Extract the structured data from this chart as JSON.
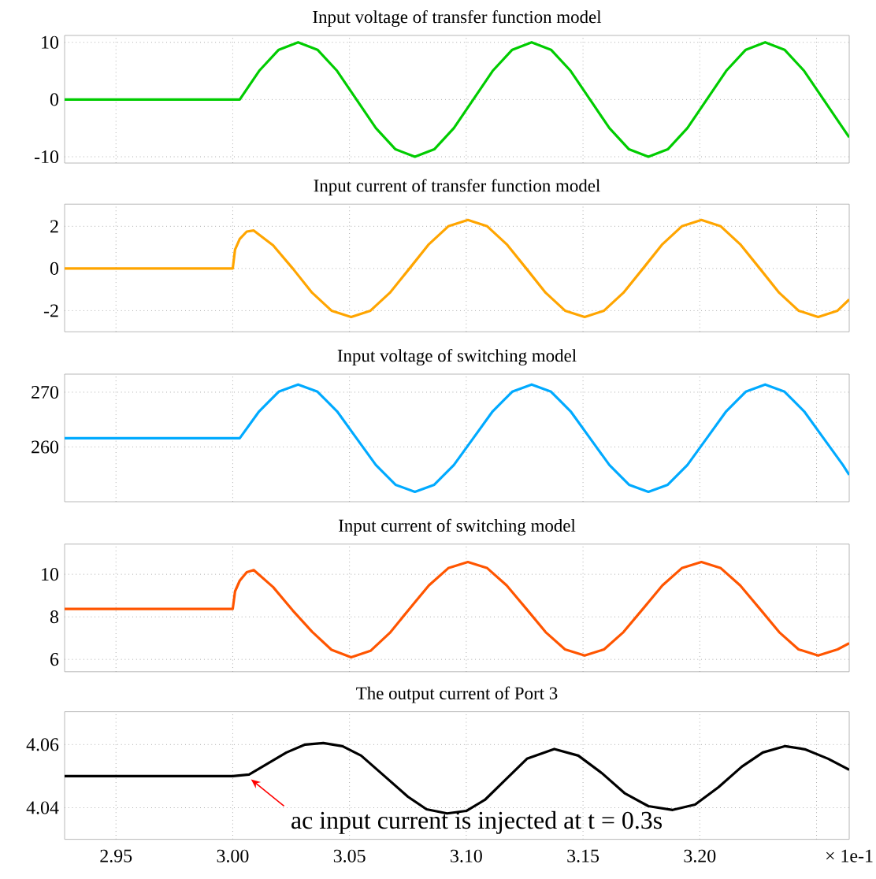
{
  "chart_data": [
    {
      "type": "line",
      "title": "Input voltage of transfer function model",
      "color": "#00cc00",
      "line_style": "solid",
      "grid": true,
      "tick_labels": "y",
      "xlim": [
        2.928,
        3.264
      ],
      "ylim": [
        -11.1,
        11.2
      ],
      "xticks": [
        2.95,
        3.0,
        3.05,
        3.1,
        3.15,
        3.2,
        3.25
      ],
      "yticks": [
        -10,
        0,
        10
      ],
      "x": [
        2.928,
        3.0,
        3.003,
        3.0113,
        3.0197,
        3.028,
        3.0363,
        3.0447,
        3.053,
        3.0613,
        3.0697,
        3.078,
        3.0863,
        3.0947,
        3.103,
        3.1113,
        3.1197,
        3.128,
        3.1363,
        3.1447,
        3.153,
        3.1613,
        3.1697,
        3.178,
        3.1863,
        3.1947,
        3.203,
        3.2113,
        3.2197,
        3.228,
        3.2363,
        3.2447,
        3.253,
        3.2613,
        3.264
      ],
      "values": [
        0,
        0,
        0,
        5,
        8.7,
        10,
        8.7,
        5,
        0,
        -5,
        -8.7,
        -10,
        -8.7,
        -5,
        0,
        5,
        8.7,
        10,
        8.7,
        5,
        0,
        -5,
        -8.7,
        -10,
        -8.7,
        -5,
        0,
        5,
        8.7,
        10,
        8.7,
        5,
        0,
        -5,
        -6.6
      ]
    },
    {
      "type": "line",
      "title": "Input current of transfer function model",
      "color": "#ffa500",
      "line_style": "solid",
      "grid": true,
      "tick_labels": "y",
      "xlim": [
        2.928,
        3.264
      ],
      "ylim": [
        -3,
        3.05
      ],
      "xticks": [
        2.95,
        3.0,
        3.05,
        3.1,
        3.15,
        3.2,
        3.25
      ],
      "yticks": [
        -2,
        0,
        2
      ],
      "x": [
        2.928,
        3.0,
        3.001,
        3.003,
        3.006,
        3.009,
        3.0173,
        3.0257,
        3.034,
        3.0423,
        3.0507,
        3.059,
        3.0673,
        3.0757,
        3.084,
        3.0923,
        3.1007,
        3.109,
        3.1173,
        3.1257,
        3.134,
        3.1423,
        3.1507,
        3.159,
        3.1673,
        3.1757,
        3.184,
        3.1923,
        3.2007,
        3.209,
        3.2173,
        3.2257,
        3.234,
        3.2423,
        3.2507,
        3.259,
        3.264
      ],
      "values": [
        0,
        0,
        0.9,
        1.4,
        1.75,
        1.8,
        1.1,
        0,
        -1.15,
        -2.0,
        -2.3,
        -2.0,
        -1.15,
        0,
        1.15,
        2.0,
        2.3,
        2.0,
        1.15,
        0,
        -1.15,
        -2.0,
        -2.3,
        -2.0,
        -1.15,
        0,
        1.15,
        2.0,
        2.3,
        2.0,
        1.15,
        0,
        -1.15,
        -2.0,
        -2.3,
        -2.0,
        -1.47
      ]
    },
    {
      "type": "line",
      "title": "Input voltage of switching model",
      "color": "#00aaff",
      "line_style": "solid",
      "grid": true,
      "tick_labels": "y",
      "xlim": [
        2.928,
        3.264
      ],
      "ylim": [
        250,
        273.3
      ],
      "xticks": [
        2.95,
        3.0,
        3.05,
        3.1,
        3.15,
        3.2,
        3.25
      ],
      "yticks": [
        260,
        270
      ],
      "x": [
        2.928,
        3.0,
        3.003,
        3.0113,
        3.0197,
        3.028,
        3.0363,
        3.0447,
        3.053,
        3.0613,
        3.0697,
        3.078,
        3.0863,
        3.0947,
        3.103,
        3.1113,
        3.1197,
        3.128,
        3.1363,
        3.1447,
        3.153,
        3.1613,
        3.1697,
        3.178,
        3.1863,
        3.1947,
        3.203,
        3.2113,
        3.2197,
        3.228,
        3.2363,
        3.2447,
        3.253,
        3.2613,
        3.264
      ],
      "values": [
        261.6,
        261.6,
        261.6,
        266.5,
        270.1,
        271.4,
        270.1,
        266.5,
        261.6,
        256.7,
        253.1,
        251.8,
        253.1,
        256.7,
        261.6,
        266.5,
        270.1,
        271.4,
        270.1,
        266.5,
        261.6,
        256.7,
        253.1,
        251.8,
        253.1,
        256.7,
        261.6,
        266.5,
        270.1,
        271.4,
        270.1,
        266.5,
        261.6,
        256.7,
        254.9
      ]
    },
    {
      "type": "line",
      "title": "Input current of switching model",
      "color": "#ff5500",
      "line_style": "solid",
      "grid": true,
      "tick_labels": "y",
      "xlim": [
        2.928,
        3.264
      ],
      "ylim": [
        5.42,
        11.42
      ],
      "xticks": [
        2.95,
        3.0,
        3.05,
        3.1,
        3.15,
        3.2,
        3.25
      ],
      "yticks": [
        6,
        8,
        10
      ],
      "x": [
        2.928,
        3.0,
        3.001,
        3.003,
        3.006,
        3.009,
        3.0173,
        3.0257,
        3.034,
        3.0423,
        3.0507,
        3.059,
        3.0673,
        3.0757,
        3.084,
        3.0923,
        3.1007,
        3.109,
        3.1173,
        3.1257,
        3.134,
        3.1423,
        3.1507,
        3.159,
        3.1673,
        3.1757,
        3.184,
        3.1923,
        3.2007,
        3.209,
        3.2173,
        3.2257,
        3.234,
        3.2423,
        3.2507,
        3.259,
        3.264
      ],
      "values": [
        8.37,
        8.37,
        9.2,
        9.7,
        10.1,
        10.2,
        9.4,
        8.3,
        7.3,
        6.45,
        6.1,
        6.4,
        7.25,
        8.38,
        9.48,
        10.29,
        10.58,
        10.29,
        9.48,
        8.38,
        7.28,
        6.47,
        6.18,
        6.47,
        7.28,
        8.38,
        9.48,
        10.29,
        10.58,
        10.29,
        9.48,
        8.38,
        7.28,
        6.47,
        6.18,
        6.47,
        6.76
      ]
    },
    {
      "type": "line",
      "title": "The output current of Port 3",
      "xlabel": "× 1e-1",
      "color": "#000000",
      "line_style": "solid",
      "grid": true,
      "xlim": [
        2.928,
        3.264
      ],
      "ylim": [
        4.03,
        4.0704
      ],
      "xticks": [
        2.95,
        {
          "value": 3.0,
          "label": "3.00"
        },
        3.05,
        {
          "value": 3.1,
          "label": "3.10"
        },
        3.15,
        {
          "value": 3.2,
          "label": "3.20"
        },
        {
          "value": 3.25,
          "label": null
        }
      ],
      "yticks": [
        4.04,
        4.06
      ],
      "x": [
        2.928,
        3.0,
        3.007,
        3.015,
        3.023,
        3.031,
        3.0388,
        3.047,
        3.055,
        3.065,
        3.075,
        3.083,
        3.0918,
        3.1,
        3.108,
        3.117,
        3.126,
        3.1377,
        3.148,
        3.158,
        3.168,
        3.178,
        3.1884,
        3.198,
        3.208,
        3.218,
        3.227,
        3.2366,
        3.245,
        3.255,
        3.264
      ],
      "values": [
        4.05,
        4.05,
        4.0505,
        4.054,
        4.0575,
        4.06,
        4.0605,
        4.0595,
        4.0565,
        4.05,
        4.0435,
        4.0395,
        4.0382,
        4.039,
        4.0425,
        4.049,
        4.0555,
        4.0586,
        4.0565,
        4.051,
        4.0445,
        4.0405,
        4.0393,
        4.041,
        4.0465,
        4.053,
        4.0575,
        4.0595,
        4.0585,
        4.0555,
        4.052
      ],
      "annotations": [
        {
          "text": "ac input current is injected at t = 0.3s",
          "x": 3.0078,
          "y": 4.049
        }
      ]
    }
  ]
}
